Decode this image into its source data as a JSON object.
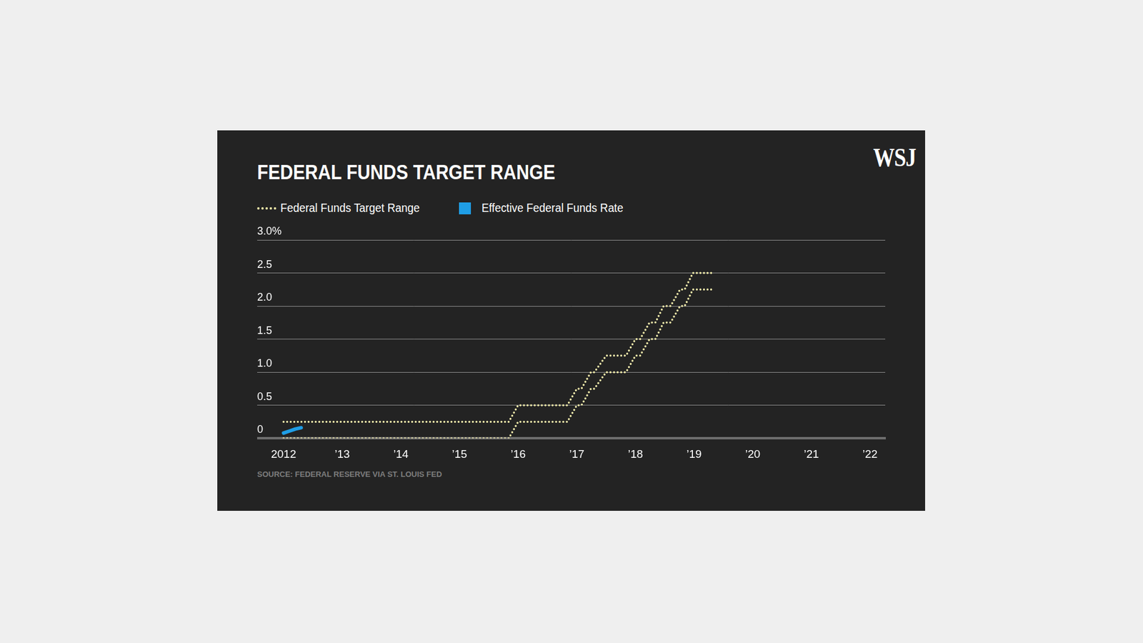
{
  "chart_data": {
    "type": "line",
    "title": "FEDERAL FUNDS TARGET RANGE",
    "logo": "WSJ",
    "source": "SOURCE: FEDERAL RESERVE VIA ST. LOUIS FED",
    "x": [
      2012.0,
      2012.1,
      2012.2,
      2012.3,
      2015.84,
      2016.0,
      2016.84,
      2017.0,
      2017.08,
      2017.24,
      2017.3,
      2017.5,
      2017.84,
      2018.0,
      2018.08,
      2018.24,
      2018.34,
      2018.48,
      2018.6,
      2018.76,
      2018.84,
      2018.98,
      2019.3
    ],
    "series": [
      {
        "name": "Federal Funds Target Range",
        "color": "#eee8a9",
        "line_style": "dotted",
        "values": [
          0.25,
          0.25,
          0.25,
          0.25,
          0.25,
          0.5,
          0.5,
          0.75,
          0.75,
          1.0,
          1.0,
          1.25,
          1.25,
          1.5,
          1.5,
          1.75,
          1.75,
          2.0,
          2.0,
          2.25,
          2.25,
          2.5,
          2.5
        ]
      },
      {
        "name": "Federal Funds Target Range",
        "color": "#eee8a9",
        "line_style": "dotted",
        "values": [
          0,
          0,
          0,
          0,
          0,
          0.25,
          0.25,
          0.5,
          0.5,
          0.75,
          0.75,
          1.0,
          1.0,
          1.25,
          1.25,
          1.5,
          1.5,
          1.75,
          1.75,
          2.0,
          2.0,
          2.25,
          2.25
        ]
      },
      {
        "name": "Effective Federal Funds Rate",
        "color": "#1f9ee6",
        "line_style": "solid",
        "values": [
          0.08,
          0.11,
          0.14,
          0.16,
          null,
          null,
          null,
          null,
          null,
          null,
          null,
          null,
          null,
          null,
          null,
          null,
          null,
          null,
          null,
          null,
          null,
          null,
          null
        ]
      }
    ],
    "xlim": [
      2011.55,
      2022.26
    ],
    "xticks": [
      {
        "value": 2012,
        "label": "2012"
      },
      {
        "value": 2013,
        "label": "’13"
      },
      {
        "value": 2014,
        "label": "’14"
      },
      {
        "value": 2015,
        "label": "’15"
      },
      {
        "value": 2016,
        "label": "’16"
      },
      {
        "value": 2017,
        "label": "’17"
      },
      {
        "value": 2018,
        "label": "’18"
      },
      {
        "value": 2019,
        "label": "’19"
      },
      {
        "value": 2020,
        "label": "’20"
      },
      {
        "value": 2021,
        "label": "’21"
      },
      {
        "value": 2022,
        "label": "’22"
      }
    ],
    "ylim": [
      0,
      3
    ],
    "yticks": [
      0,
      {
        "value": 0.5,
        "label": "0.5"
      },
      {
        "value": 1,
        "label": "1.0"
      },
      1.5,
      {
        "value": 2,
        "label": "2.0"
      },
      2.5,
      {
        "value": 3,
        "label": "3.0%"
      }
    ],
    "grid": true,
    "legend": "top-left"
  }
}
